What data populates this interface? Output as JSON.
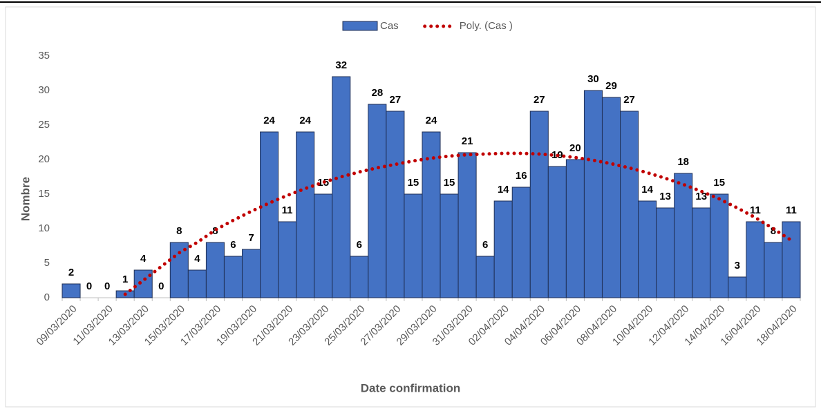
{
  "chart_data": {
    "type": "bar",
    "x_label": "Date confirmation",
    "y_label": "Nombre",
    "categories": [
      "09/03/2020",
      null,
      "11/03/2020",
      null,
      "13/03/2020",
      null,
      "15/03/2020",
      null,
      "17/03/2020",
      null,
      "19/03/2020",
      null,
      "21/03/2020",
      null,
      "23/03/2020",
      null,
      "25/03/2020",
      null,
      "27/03/2020",
      null,
      "29/03/2020",
      null,
      "31/03/2020",
      null,
      "02/04/2020",
      null,
      "04/04/2020",
      null,
      "06/04/2020",
      null,
      "08/04/2020",
      null,
      "10/04/2020",
      null,
      "12/04/2020",
      null,
      "14/04/2020",
      null,
      "16/04/2020",
      null,
      "18/04/2020"
    ],
    "series": [
      {
        "name": "Cas",
        "color": "#4472c4",
        "values": [
          2,
          0,
          0,
          1,
          4,
          0,
          8,
          4,
          8,
          6,
          7,
          24,
          11,
          24,
          15,
          32,
          6,
          28,
          27,
          15,
          24,
          15,
          21,
          6,
          14,
          16,
          27,
          19,
          20,
          30,
          29,
          27,
          14,
          13,
          18,
          13,
          15,
          3,
          11,
          8,
          11
        ]
      },
      {
        "name": "Poly. (Cas )",
        "color": "#c00000",
        "type": "line",
        "values": [
          null,
          null,
          null,
          0.5,
          2.5,
          4.5,
          6.5,
          8,
          9.8,
          11.2,
          12.5,
          13.7,
          14.8,
          15.8,
          16.7,
          17.5,
          18.2,
          18.8,
          19.3,
          19.8,
          20.2,
          20.5,
          20.7,
          20.8,
          20.9,
          20.9,
          20.8,
          20.6,
          20.3,
          19.9,
          19.4,
          18.8,
          18.1,
          17.3,
          16.4,
          15.4,
          14.3,
          13,
          11.6,
          10,
          8.3
        ]
      }
    ],
    "ylim": [
      0,
      35
    ],
    "yticks": [
      0,
      5,
      10,
      15,
      20,
      25,
      30,
      35
    ],
    "grid": false,
    "legend": "top"
  }
}
